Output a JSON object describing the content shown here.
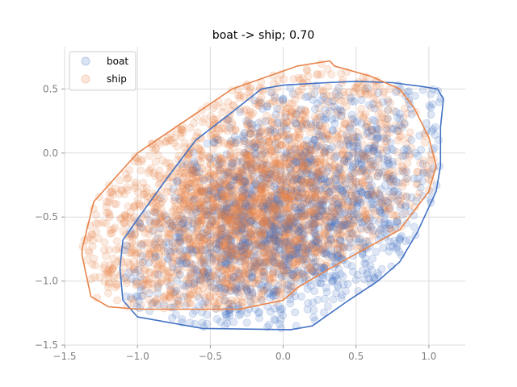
{
  "chart_data": {
    "type": "scatter",
    "title": "boat -> ship; 0.70",
    "xlabel": "",
    "ylabel": "",
    "xlim": [
      -1.5,
      1.25
    ],
    "ylim": [
      -1.5,
      0.83
    ],
    "xticks": [
      -1.5,
      -1.0,
      -0.5,
      0.0,
      0.5,
      1.0
    ],
    "xtick_labels": [
      "−1.5",
      "−1.0",
      "−0.5",
      "0.0",
      "0.5",
      "1.0"
    ],
    "yticks": [
      -1.5,
      -1.0,
      -0.5,
      0.0,
      0.5
    ],
    "ytick_labels": [
      "−1.5",
      "−1.0",
      "−0.5",
      "0.0",
      "0.5"
    ],
    "grid": true,
    "legend": "upper-left",
    "series": [
      {
        "name": "boat",
        "color": "#4472c4",
        "point_count": 1500,
        "center": [
          0.05,
          -0.55
        ],
        "hull": [
          [
            1.1,
            0.42
          ],
          [
            1.06,
            0.5
          ],
          [
            0.95,
            0.52
          ],
          [
            0.75,
            0.55
          ],
          [
            0.5,
            0.56
          ],
          [
            0.3,
            0.55
          ],
          [
            0.0,
            0.53
          ],
          [
            -0.15,
            0.5
          ],
          [
            -0.35,
            0.32
          ],
          [
            -0.6,
            0.1
          ],
          [
            -0.8,
            -0.2
          ],
          [
            -0.97,
            -0.47
          ],
          [
            -1.1,
            -0.68
          ],
          [
            -1.12,
            -0.9
          ],
          [
            -1.1,
            -1.15
          ],
          [
            -1.0,
            -1.28
          ],
          [
            -0.55,
            -1.37
          ],
          [
            0.05,
            -1.38
          ],
          [
            0.2,
            -1.35
          ],
          [
            0.45,
            -1.15
          ],
          [
            0.65,
            -1.0
          ],
          [
            0.8,
            -0.85
          ],
          [
            0.92,
            -0.62
          ],
          [
            1.05,
            -0.3
          ],
          [
            1.08,
            -0.1
          ],
          [
            1.08,
            0.2
          ]
        ]
      },
      {
        "name": "ship",
        "color": "#e8844a",
        "point_count": 3000,
        "center": [
          -0.2,
          -0.45
        ],
        "hull": [
          [
            0.32,
            0.72
          ],
          [
            0.35,
            0.68
          ],
          [
            0.6,
            0.6
          ],
          [
            0.8,
            0.5
          ],
          [
            0.9,
            0.35
          ],
          [
            1.0,
            0.12
          ],
          [
            1.05,
            -0.1
          ],
          [
            1.0,
            -0.3
          ],
          [
            0.8,
            -0.6
          ],
          [
            0.4,
            -0.85
          ],
          [
            0.1,
            -1.05
          ],
          [
            0.0,
            -1.15
          ],
          [
            -0.3,
            -1.22
          ],
          [
            -1.0,
            -1.22
          ],
          [
            -1.2,
            -1.2
          ],
          [
            -1.32,
            -1.12
          ],
          [
            -1.38,
            -0.8
          ],
          [
            -1.38,
            -0.75
          ],
          [
            -1.3,
            -0.38
          ],
          [
            -1.0,
            0.0
          ],
          [
            -0.35,
            0.5
          ],
          [
            0.1,
            0.68
          ]
        ]
      }
    ]
  }
}
